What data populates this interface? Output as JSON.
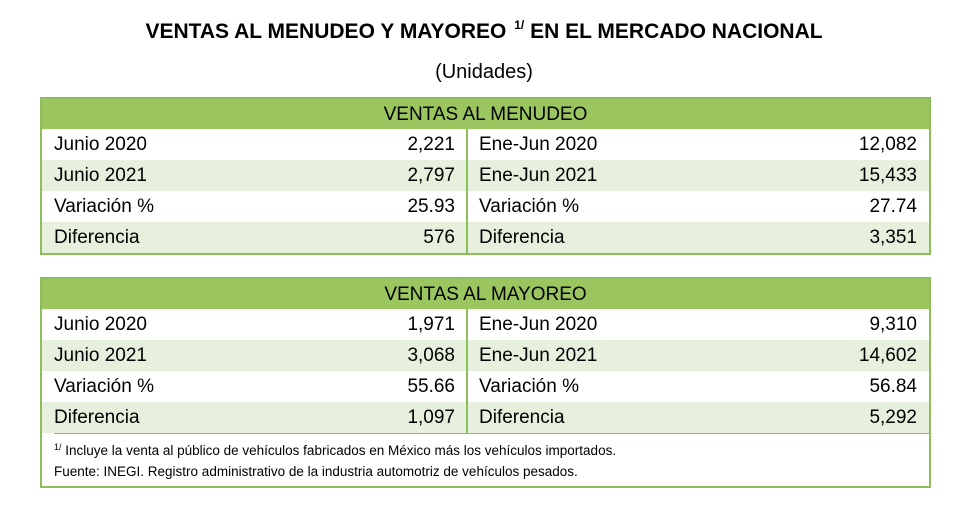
{
  "title": {
    "text": "VENTAS AL MENUDEO Y MAYOREO",
    "footnote_mark": "1/",
    "text_after": "EN EL MERCADO NACIONAL"
  },
  "subtitle": "(Unidades)",
  "menudeo": {
    "header": "VENTAS AL MENUDEO",
    "rows": [
      {
        "l_label": "Junio 2020",
        "l_value": "2,221",
        "r_label": "Ene-Jun 2020",
        "r_value": "12,082"
      },
      {
        "l_label": "Junio 2021",
        "l_value": "2,797",
        "r_label": "Ene-Jun 2021",
        "r_value": "15,433"
      },
      {
        "l_label": "Variación %",
        "l_value": "25.93",
        "r_label": "Variación %",
        "r_value": "27.74"
      },
      {
        "l_label": "Diferencia",
        "l_value": "576",
        "r_label": "Diferencia",
        "r_value": "3,351"
      }
    ]
  },
  "mayoreo": {
    "header": "VENTAS AL MAYOREO",
    "rows": [
      {
        "l_label": "Junio 2020",
        "l_value": "1,971",
        "r_label": "Ene-Jun 2020",
        "r_value": "9,310"
      },
      {
        "l_label": "Junio 2021",
        "l_value": "3,068",
        "r_label": "Ene-Jun 2021",
        "r_value": "14,602"
      },
      {
        "l_label": "Variación %",
        "l_value": "55.66",
        "r_label": "Variación %",
        "r_value": "56.84"
      },
      {
        "l_label": "Diferencia",
        "l_value": "1,097",
        "r_label": "Diferencia",
        "r_value": "5,292"
      }
    ]
  },
  "notes": {
    "mark": "1/",
    "note1": "Incluye la venta al público de vehículos fabricados en México más los vehículos importados.",
    "source": "Fuente: INEGI. Registro administrativo de la industria automotriz de vehículos pesados."
  },
  "colors": {
    "header_green": "#9bc55e",
    "border_green": "#8cbf5a",
    "row_shade": "#e7f0dc"
  }
}
